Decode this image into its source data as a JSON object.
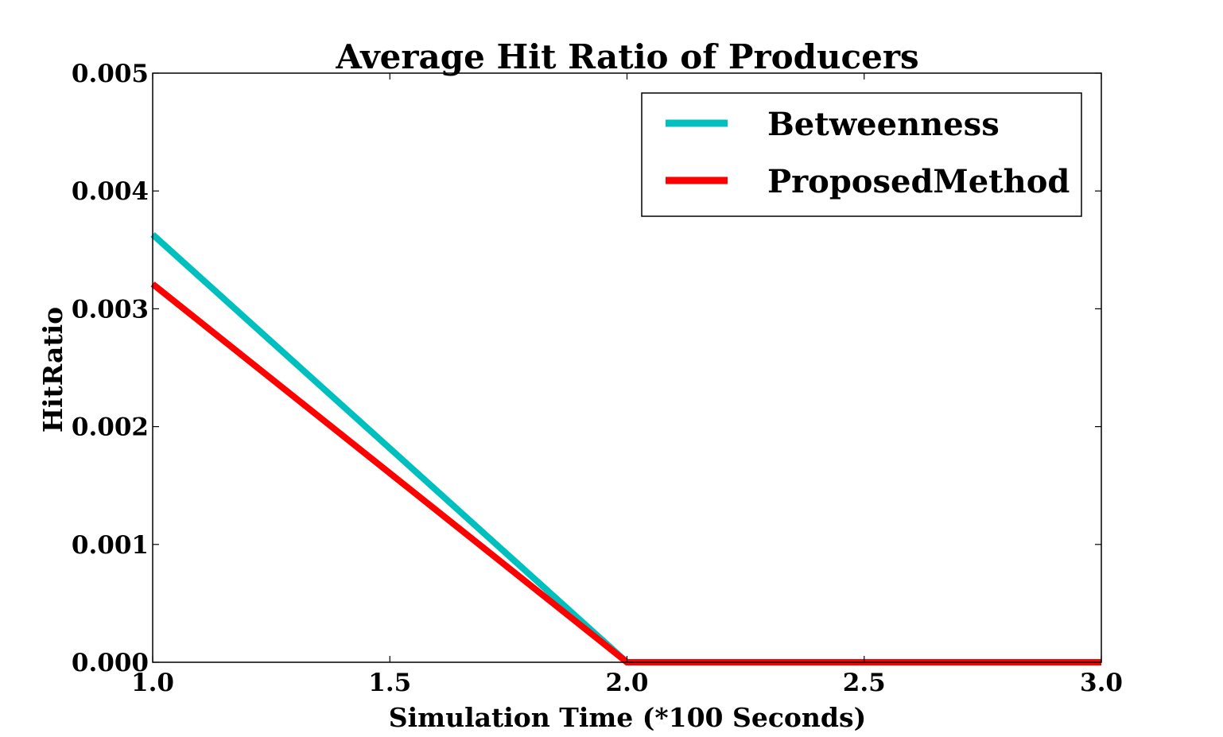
{
  "chart_data": {
    "type": "line",
    "title": "Average Hit Ratio of Producers",
    "xlabel": "Simulation Time (*100 Seconds)",
    "ylabel": "HitRatio",
    "xlim": [
      1.0,
      3.0
    ],
    "ylim": [
      0.0,
      0.005
    ],
    "x_ticks": [
      "1.0",
      "1.5",
      "2.0",
      "2.5",
      "3.0"
    ],
    "y_ticks": [
      "0.000",
      "0.001",
      "0.002",
      "0.003",
      "0.004",
      "0.005"
    ],
    "x": [
      1.0,
      2.0,
      3.0
    ],
    "series": [
      {
        "name": "Betweenness",
        "color": "#00bfbf",
        "values": [
          0.00363,
          0.0,
          0.0
        ]
      },
      {
        "name": "ProposedMethod",
        "color": "#ff0000",
        "values": [
          0.00321,
          0.0,
          0.0
        ]
      }
    ],
    "legend": "upper-right",
    "grid": false
  }
}
